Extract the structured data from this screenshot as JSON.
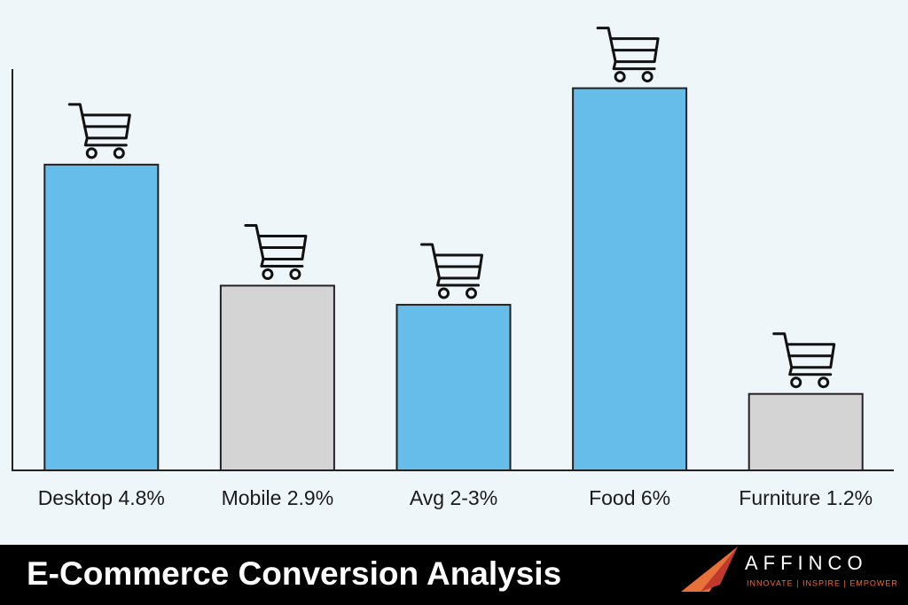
{
  "chart_data": {
    "type": "bar",
    "title": "E-Commerce Conversion Analysis",
    "categories": [
      "Desktop 4.8%",
      "Mobile 2.9%",
      "Avg 2-3%",
      "Food 6%",
      "Furniture 1.2%"
    ],
    "values": [
      4.8,
      2.9,
      2.6,
      6,
      1.2
    ],
    "colors": [
      "#67bde9",
      "#d4d4d4",
      "#67bde9",
      "#67bde9",
      "#d4d4d4"
    ],
    "ylim": [
      0,
      6.3
    ]
  },
  "brand": {
    "name": "AFFINCO",
    "tagline": "INNOVATE | INSPIRE | EMPOWER"
  }
}
